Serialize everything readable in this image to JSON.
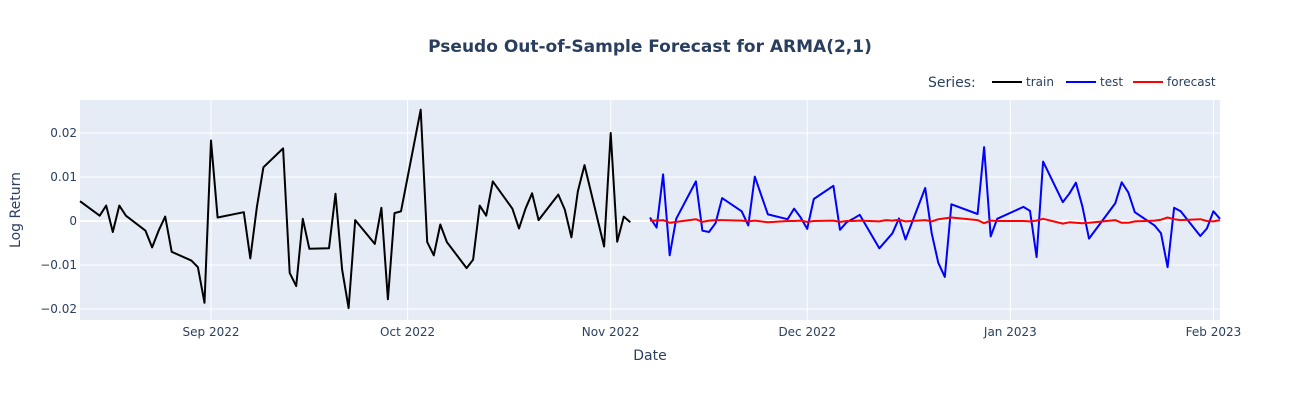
{
  "chart_data": {
    "type": "line",
    "title": "Pseudo Out-of-Sample Forecast for ARMA(2,1)",
    "xlabel": "Date",
    "ylabel": "Log Return",
    "x_range": [
      "2022-08-12",
      "2023-02-02"
    ],
    "ylim": [
      -0.0225,
      0.0275
    ],
    "y_ticks": [
      -0.02,
      -0.01,
      0,
      0.01,
      0.02
    ],
    "y_tick_labels": [
      "−0.02",
      "−0.01",
      "0",
      "0.01",
      "0.02"
    ],
    "x_ticks": [
      "2022-09-01",
      "2022-10-01",
      "2022-11-01",
      "2022-12-01",
      "2023-01-01",
      "2023-02-01"
    ],
    "x_tick_labels": [
      "Sep 2022",
      "Oct 2022",
      "Nov 2022",
      "Dec 2022",
      "Jan 2023",
      "Feb 2023"
    ],
    "grid": true,
    "legend": {
      "title": "Series:",
      "placement": "top-right",
      "orientation": "horizontal"
    },
    "series": [
      {
        "name": "train",
        "color": "#000000",
        "x": [
          "2022-08-12",
          "2022-08-15",
          "2022-08-16",
          "2022-08-17",
          "2022-08-18",
          "2022-08-19",
          "2022-08-22",
          "2022-08-23",
          "2022-08-24",
          "2022-08-25",
          "2022-08-26",
          "2022-08-29",
          "2022-08-30",
          "2022-08-31",
          "2022-09-01",
          "2022-09-02",
          "2022-09-06",
          "2022-09-07",
          "2022-09-08",
          "2022-09-09",
          "2022-09-12",
          "2022-09-13",
          "2022-09-14",
          "2022-09-15",
          "2022-09-16",
          "2022-09-19",
          "2022-09-20",
          "2022-09-21",
          "2022-09-22",
          "2022-09-23",
          "2022-09-26",
          "2022-09-27",
          "2022-09-28",
          "2022-09-29",
          "2022-09-30",
          "2022-10-03",
          "2022-10-04",
          "2022-10-05",
          "2022-10-06",
          "2022-10-07",
          "2022-10-10",
          "2022-10-11",
          "2022-10-12",
          "2022-10-13",
          "2022-10-14",
          "2022-10-17",
          "2022-10-18",
          "2022-10-19",
          "2022-10-20",
          "2022-10-21",
          "2022-10-24",
          "2022-10-25",
          "2022-10-26",
          "2022-10-27",
          "2022-10-28",
          "2022-10-31",
          "2022-11-01",
          "2022-11-02",
          "2022-11-03",
          "2022-11-04"
        ],
        "y": [
          0.0045,
          0.0012,
          0.0035,
          -0.0025,
          0.0035,
          0.0012,
          -0.0022,
          -0.006,
          -0.0022,
          0.001,
          -0.007,
          -0.009,
          -0.0105,
          -0.0186,
          0.0183,
          0.0008,
          0.002,
          -0.0085,
          0.0032,
          0.0122,
          0.0165,
          -0.0118,
          -0.0148,
          0.0005,
          -0.0063,
          -0.0062,
          0.0062,
          -0.011,
          -0.0198,
          0.0002,
          -0.0052,
          0.003,
          -0.0178,
          0.0018,
          0.0022,
          0.0253,
          -0.0048,
          -0.0078,
          -0.0008,
          -0.0048,
          -0.0107,
          -0.0088,
          0.0035,
          0.0012,
          0.009,
          0.0028,
          -0.0017,
          0.0028,
          0.0063,
          0.0002,
          0.006,
          0.0026,
          -0.0037,
          0.0068,
          0.0127,
          -0.0058,
          0.02,
          -0.0047,
          0.001,
          -0.0003
        ]
      },
      {
        "name": "test",
        "color": "#0000ff",
        "x": [
          "2022-11-07",
          "2022-11-08",
          "2022-11-09",
          "2022-11-10",
          "2022-11-11",
          "2022-11-14",
          "2022-11-15",
          "2022-11-16",
          "2022-11-17",
          "2022-11-18",
          "2022-11-21",
          "2022-11-22",
          "2022-11-23",
          "2022-11-25",
          "2022-11-28",
          "2022-11-29",
          "2022-11-30",
          "2022-12-01",
          "2022-12-02",
          "2022-12-05",
          "2022-12-06",
          "2022-12-07",
          "2022-12-08",
          "2022-12-09",
          "2022-12-12",
          "2022-12-13",
          "2022-12-14",
          "2022-12-15",
          "2022-12-16",
          "2022-12-19",
          "2022-12-20",
          "2022-12-21",
          "2022-12-22",
          "2022-12-23",
          "2022-12-27",
          "2022-12-28",
          "2022-12-29",
          "2022-12-30",
          "2023-01-03",
          "2023-01-04",
          "2023-01-05",
          "2023-01-06",
          "2023-01-09",
          "2023-01-10",
          "2023-01-11",
          "2023-01-12",
          "2023-01-13",
          "2023-01-17",
          "2023-01-18",
          "2023-01-19",
          "2023-01-20",
          "2023-01-23",
          "2023-01-24",
          "2023-01-25",
          "2023-01-26",
          "2023-01-27",
          "2023-01-30",
          "2023-01-31",
          "2023-02-01",
          "2023-02-02"
        ],
        "y": [
          0.0008,
          -0.0015,
          0.0106,
          -0.0078,
          0.0005,
          0.009,
          -0.0022,
          -0.0025,
          -0.0005,
          0.0052,
          0.0022,
          -0.001,
          0.0101,
          0.0015,
          0.0004,
          0.0028,
          0.0008,
          -0.0018,
          0.005,
          0.008,
          -0.002,
          -0.0003,
          0.0005,
          0.0014,
          -0.0062,
          -0.0045,
          -0.0028,
          0.0006,
          -0.0042,
          0.0075,
          -0.0028,
          -0.0095,
          -0.0127,
          0.0038,
          0.0016,
          0.0168,
          -0.0035,
          0.0005,
          0.0032,
          0.0023,
          -0.0082,
          0.0135,
          0.0043,
          0.0062,
          0.0087,
          0.0033,
          -0.004,
          0.004,
          0.0088,
          0.0065,
          0.002,
          -0.001,
          -0.0028,
          -0.0105,
          0.003,
          0.0022,
          -0.0034,
          -0.0017,
          0.0022,
          0.0005
        ]
      },
      {
        "name": "forecast",
        "color": "#ff0000",
        "x": [
          "2022-11-07",
          "2022-11-08",
          "2022-11-09",
          "2022-11-10",
          "2022-11-11",
          "2022-11-14",
          "2022-11-15",
          "2022-11-16",
          "2022-11-17",
          "2022-11-18",
          "2022-11-21",
          "2022-11-22",
          "2022-11-23",
          "2022-11-25",
          "2022-11-28",
          "2022-11-29",
          "2022-11-30",
          "2022-12-01",
          "2022-12-02",
          "2022-12-05",
          "2022-12-06",
          "2022-12-07",
          "2022-12-08",
          "2022-12-09",
          "2022-12-12",
          "2022-12-13",
          "2022-12-14",
          "2022-12-15",
          "2022-12-16",
          "2022-12-19",
          "2022-12-20",
          "2022-12-21",
          "2022-12-22",
          "2022-12-23",
          "2022-12-27",
          "2022-12-28",
          "2022-12-29",
          "2022-12-30",
          "2023-01-03",
          "2023-01-04",
          "2023-01-05",
          "2023-01-06",
          "2023-01-09",
          "2023-01-10",
          "2023-01-11",
          "2023-01-12",
          "2023-01-13",
          "2023-01-17",
          "2023-01-18",
          "2023-01-19",
          "2023-01-20",
          "2023-01-23",
          "2023-01-24",
          "2023-01-25",
          "2023-01-26",
          "2023-01-27",
          "2023-01-30",
          "2023-01-31",
          "2023-02-01",
          "2023-02-02"
        ],
        "y": [
          0.0001,
          0.0001,
          0.0002,
          -0.0004,
          -0.0002,
          0.0004,
          -0.0002,
          0.0001,
          0.0002,
          0.0002,
          0.0001,
          -0.0001,
          0.0001,
          -0.0003,
          0.0,
          0.0,
          0.0001,
          -0.0002,
          0.0,
          0.0001,
          -0.0002,
          0.0,
          0.0,
          0.0001,
          -0.0001,
          0.0002,
          0.0001,
          0.0003,
          -0.0001,
          0.0002,
          -0.0001,
          0.0004,
          0.0006,
          0.0008,
          0.0002,
          -0.0005,
          0.0001,
          0.0,
          0.0,
          -0.0001,
          0.0001,
          0.0005,
          -0.0006,
          -0.0003,
          -0.0004,
          -0.0005,
          -0.0004,
          0.0002,
          -0.0004,
          -0.0004,
          -0.0001,
          0.0001,
          0.0003,
          0.0008,
          0.0004,
          0.0002,
          0.0004,
          0.0,
          -0.0001,
          0.0002
        ]
      }
    ]
  }
}
